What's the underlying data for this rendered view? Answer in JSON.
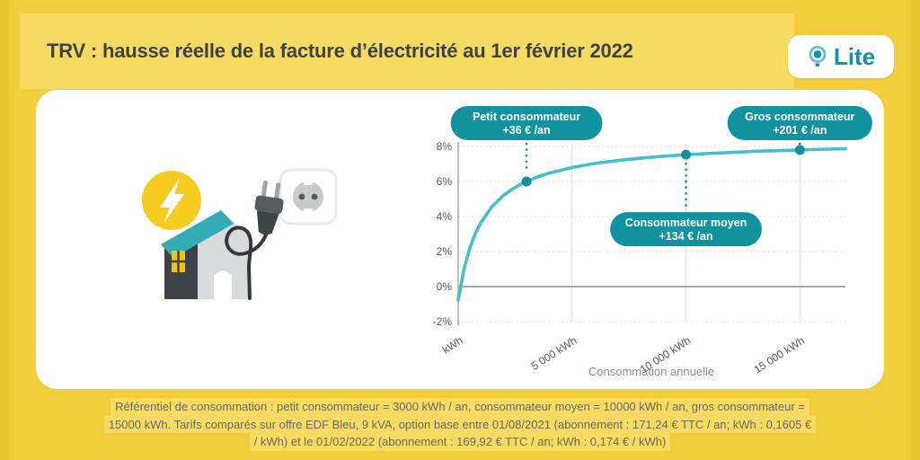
{
  "header": {
    "title": "TRV : hausse réelle de la facture d’électricité au 1er février 2022",
    "logo_text": "Lite"
  },
  "illustration_icons": [
    "lightning-icon",
    "house-icon",
    "power-plug-icon",
    "wall-socket-icon",
    "power-cord-icon"
  ],
  "chart_data": {
    "type": "line",
    "xlabel": "Consommation annuelle",
    "xlim": [
      0,
      17000
    ],
    "ylim": [
      -2,
      8
    ],
    "grid": true,
    "x_ticks": [
      {
        "v": 0,
        "label": "kWh"
      },
      {
        "v": 5000,
        "label": "5 000 kWh"
      },
      {
        "v": 10000,
        "label": "10 000 kWh"
      },
      {
        "v": 15000,
        "label": "15 000 kWh"
      }
    ],
    "y_ticks": [
      {
        "v": 8,
        "label": "8%"
      },
      {
        "v": 6,
        "label": "6%"
      },
      {
        "v": 4,
        "label": "4%"
      },
      {
        "v": 2,
        "label": "2%"
      },
      {
        "v": 0,
        "label": "0%"
      },
      {
        "v": -2,
        "label": "-2%"
      }
    ],
    "series": [
      {
        "points": [
          [
            0,
            -0.77
          ],
          [
            250,
            0.97
          ],
          [
            500,
            2.16
          ],
          [
            750,
            3.02
          ],
          [
            1000,
            3.67
          ],
          [
            1500,
            4.59
          ],
          [
            2000,
            5.22
          ],
          [
            2500,
            5.67
          ],
          [
            3000,
            6.0
          ],
          [
            3500,
            6.27
          ],
          [
            4000,
            6.48
          ],
          [
            5000,
            6.8
          ],
          [
            6000,
            7.03
          ],
          [
            7000,
            7.2
          ],
          [
            8000,
            7.33
          ],
          [
            9000,
            7.44
          ],
          [
            10000,
            7.53
          ],
          [
            11000,
            7.6
          ],
          [
            12000,
            7.66
          ],
          [
            13000,
            7.72
          ],
          [
            14000,
            7.76
          ],
          [
            15000,
            7.8
          ],
          [
            16000,
            7.84
          ],
          [
            17000,
            7.87
          ]
        ]
      }
    ],
    "annotations": [
      {
        "x": 3000,
        "y": 6.0,
        "line1": "Petit consommateur",
        "line2": "+36 € /an",
        "placement": "above"
      },
      {
        "x": 10000,
        "y": 7.53,
        "line1": "Consommateur moyen",
        "line2": "+134 € /an",
        "placement": "below"
      },
      {
        "x": 15000,
        "y": 7.8,
        "line1": "Gros consommateur",
        "line2": "+201 € /an",
        "placement": "above"
      }
    ],
    "colors": {
      "line": "#45BFCA",
      "accent": "#12929F",
      "grid": "#E2E2E2",
      "zero_line": "#8A8A8A",
      "axis": "#A8A8A8"
    }
  },
  "footer": {
    "line1": "Référentiel de consommation : petit consommateur = 3000 kWh / an, consommateur moyen = 10000 kWh / an, gros consommateur =",
    "line2": "15000 kWh. Tarifs comparés sur offre EDF Bleu, 9 kVA, option base entre 01/08/2021 (abonnement : 171,24 € TTC / an; kWh : 0,1605 €",
    "line3": "/ kWh) et le 01/02/2022 (abonnement : 169,92 € TTC / an; kWh :  0,174 € / kWh)"
  },
  "colors": {
    "background": "#F3CE3C",
    "band": "#F6DA62",
    "accent_teal": "#12929F",
    "title_text": "#3E4347"
  }
}
